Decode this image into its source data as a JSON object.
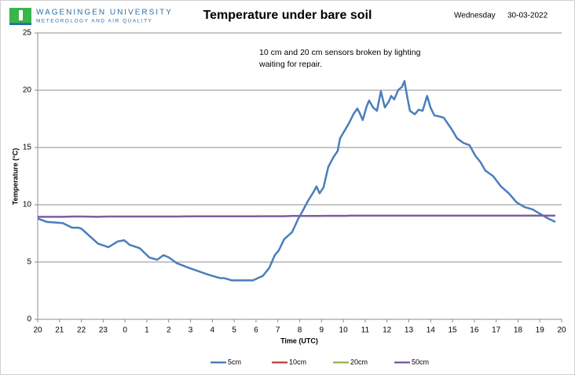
{
  "chart_data": {
    "type": "line",
    "organization": "WAGENINGEN UNIVERSITY",
    "department": "METEOROLOGY AND AIR QUALITY",
    "title": "Temperature under bare soil",
    "weekday": "Wednesday",
    "date": "30-03-2022",
    "annotations": [
      "10 cm and 20 cm sensors broken by lighting",
      "waiting for repair."
    ],
    "xlabel": "Time (UTC)",
    "ylabel": "Temperature (°C)",
    "xlim": [
      0,
      24
    ],
    "xticks": [
      {
        "value": 0,
        "label": "20"
      },
      {
        "value": 1,
        "label": "21"
      },
      {
        "value": 2,
        "label": "22"
      },
      {
        "value": 3,
        "label": "23"
      },
      {
        "value": 4,
        "label": "0"
      },
      {
        "value": 5,
        "label": "1"
      },
      {
        "value": 6,
        "label": "2"
      },
      {
        "value": 7,
        "label": "3"
      },
      {
        "value": 8,
        "label": "4"
      },
      {
        "value": 9,
        "label": "5"
      },
      {
        "value": 10,
        "label": "6"
      },
      {
        "value": 11,
        "label": "7"
      },
      {
        "value": 12,
        "label": "8"
      },
      {
        "value": 13,
        "label": "9"
      },
      {
        "value": 14,
        "label": "10"
      },
      {
        "value": 15,
        "label": "11"
      },
      {
        "value": 16,
        "label": "12"
      },
      {
        "value": 17,
        "label": "13"
      },
      {
        "value": 18,
        "label": "14"
      },
      {
        "value": 19,
        "label": "15"
      },
      {
        "value": 20,
        "label": "16"
      },
      {
        "value": 21,
        "label": "17"
      },
      {
        "value": 22,
        "label": "18"
      },
      {
        "value": 23,
        "label": "19"
      },
      {
        "value": 24,
        "label": "20"
      }
    ],
    "ylim": [
      0,
      25
    ],
    "yticks": [
      0,
      5,
      10,
      15,
      20,
      25
    ],
    "grid": true,
    "legend": "bottom",
    "x": [
      0,
      0.43,
      1.15,
      1.58,
      1.87,
      2.01,
      2.77,
      3.24,
      3.67,
      3.96,
      4.21,
      4.68,
      5.11,
      5.47,
      5.76,
      6.01,
      6.37,
      6.91,
      7.81,
      8.35,
      8.53,
      8.88,
      9.42,
      9.86,
      10.32,
      10.61,
      10.86,
      11.04,
      11.29,
      11.65,
      11.94,
      12.12,
      12.37,
      12.66,
      12.77,
      12.91,
      13.09,
      13.31,
      13.56,
      13.74,
      13.85,
      14.1,
      14.28,
      14.46,
      14.64,
      14.75,
      14.89,
      15.07,
      15.18,
      15.36,
      15.54,
      15.72,
      15.9,
      16.08,
      16.19,
      16.33,
      16.51,
      16.69,
      16.8,
      16.91,
      17.05,
      17.27,
      17.45,
      17.63,
      17.84,
      17.99,
      18.17,
      18.42,
      18.6,
      18.96,
      19.21,
      19.5,
      19.78,
      20.04,
      20.29,
      20.5,
      20.86,
      21.22,
      21.58,
      21.94,
      22.3,
      22.66,
      23.02,
      23.38,
      23.71
    ],
    "series": [
      {
        "name": "5cm",
        "color": "#4a7ebb",
        "values": [
          8.8,
          8.5,
          8.4,
          8.0,
          8.0,
          7.9,
          6.6,
          6.3,
          6.8,
          6.9,
          6.5,
          6.2,
          5.4,
          5.2,
          5.6,
          5.4,
          4.9,
          4.5,
          3.9,
          3.6,
          3.6,
          3.4,
          3.4,
          3.4,
          3.8,
          4.5,
          5.6,
          6.0,
          7.0,
          7.6,
          8.8,
          9.4,
          10.3,
          11.2,
          11.6,
          11.0,
          11.5,
          13.3,
          14.2,
          14.7,
          15.8,
          16.6,
          17.2,
          17.9,
          18.4,
          18.0,
          17.4,
          18.6,
          19.1,
          18.5,
          18.2,
          19.9,
          18.5,
          19.0,
          19.5,
          19.2,
          20.0,
          20.3,
          20.8,
          19.6,
          18.2,
          17.9,
          18.3,
          18.2,
          19.5,
          18.5,
          17.8,
          17.7,
          17.6,
          16.6,
          15.8,
          15.4,
          15.2,
          14.3,
          13.7,
          13.0,
          12.5,
          11.6,
          11.0,
          10.2,
          9.8,
          9.6,
          9.2,
          8.8,
          8.5
        ]
      },
      {
        "name": "10cm",
        "color": "#be4b48",
        "values": [
          null,
          null,
          null,
          null,
          null,
          null,
          null,
          null,
          null,
          null,
          null,
          null,
          null,
          null,
          null,
          null,
          null,
          null,
          null,
          null,
          null,
          null,
          null,
          null,
          null,
          null,
          null,
          null,
          null,
          null,
          null,
          null,
          null,
          null,
          null,
          null,
          null,
          null,
          null,
          null,
          null,
          null,
          null,
          null,
          null,
          null,
          null,
          null,
          null,
          null,
          null,
          null,
          null,
          null,
          null,
          null,
          null,
          null,
          null,
          null,
          null,
          null,
          null,
          null,
          null,
          null,
          null,
          null,
          null,
          null,
          null,
          null,
          null,
          null,
          null,
          null,
          null,
          null,
          null,
          null,
          null,
          null,
          null,
          null,
          null
        ]
      },
      {
        "name": "20cm",
        "color": "#98b954",
        "values": [
          null,
          null,
          null,
          null,
          null,
          null,
          null,
          null,
          null,
          null,
          null,
          null,
          null,
          null,
          null,
          null,
          null,
          null,
          null,
          null,
          null,
          null,
          null,
          null,
          null,
          null,
          null,
          null,
          null,
          null,
          null,
          null,
          null,
          null,
          null,
          null,
          null,
          null,
          null,
          null,
          null,
          null,
          null,
          null,
          null,
          null,
          null,
          null,
          null,
          null,
          null,
          null,
          null,
          null,
          null,
          null,
          null,
          null,
          null,
          null,
          null,
          null,
          null,
          null,
          null,
          null,
          null,
          null,
          null,
          null,
          null,
          null,
          null,
          null,
          null,
          null,
          null,
          null,
          null,
          null,
          null,
          null,
          null,
          null,
          null
        ]
      },
      {
        "name": "50cm",
        "color": "#7d5fa0",
        "values": [
          8.95,
          8.95,
          8.95,
          8.97,
          8.97,
          8.97,
          8.95,
          8.97,
          8.97,
          8.97,
          8.97,
          8.97,
          8.97,
          8.97,
          8.97,
          8.97,
          8.97,
          8.99,
          8.99,
          8.99,
          8.99,
          8.99,
          8.99,
          8.99,
          9.0,
          9.0,
          9.0,
          9.0,
          9.0,
          9.02,
          9.02,
          9.02,
          9.02,
          9.02,
          9.02,
          9.02,
          9.03,
          9.03,
          9.03,
          9.03,
          9.03,
          9.03,
          9.05,
          9.05,
          9.05,
          9.05,
          9.05,
          9.05,
          9.05,
          9.05,
          9.05,
          9.05,
          9.05,
          9.05,
          9.05,
          9.05,
          9.05,
          9.05,
          9.05,
          9.05,
          9.05,
          9.05,
          9.05,
          9.05,
          9.05,
          9.05,
          9.05,
          9.05,
          9.05,
          9.05,
          9.05,
          9.05,
          9.05,
          9.05,
          9.05,
          9.05,
          9.05,
          9.05,
          9.05,
          9.05,
          9.05,
          9.05,
          9.05,
          9.05,
          9.05
        ]
      }
    ]
  }
}
